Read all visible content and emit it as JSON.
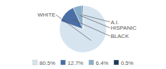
{
  "chart_data": {
    "type": "pie",
    "categories": [
      "WHITE",
      "BLACK",
      "HISPANIC",
      "A.I."
    ],
    "values": [
      80.5,
      12.7,
      6.4,
      0.5
    ],
    "value_labels": [
      "80.5%",
      "12.7%",
      "6.4%",
      "0.5%"
    ],
    "colors": [
      "#d6e4f0",
      "#4a6fa5",
      "#8aafc9",
      "#1a3a5c"
    ],
    "legend": "bottom"
  }
}
